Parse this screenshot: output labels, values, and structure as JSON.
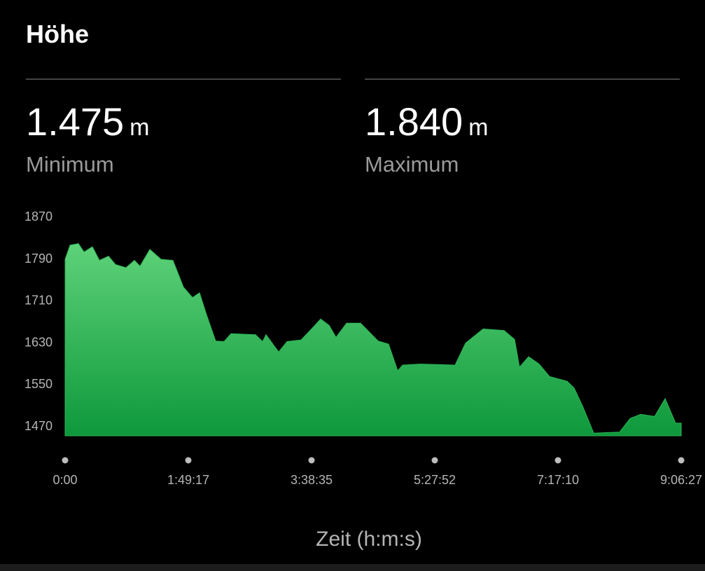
{
  "header": {
    "title": "Höhe"
  },
  "stats": [
    {
      "value": "1.475",
      "unit": "m",
      "label": "Minimum"
    },
    {
      "value": "1.840",
      "unit": "m",
      "label": "Maximum"
    }
  ],
  "chart_data": {
    "type": "area",
    "xlabel": "Zeit (h:m:s)",
    "color": "#2cb555",
    "x": [
      0,
      261,
      708,
      1006,
      1453,
      1826,
      2310,
      2683,
      3242,
      3689,
      3987,
      4509,
      5105,
      5738,
      6297,
      6781,
      7154,
      7527,
      8011,
      8458,
      8831,
      10135,
      10508,
      10694,
      11365,
      11812,
      12557,
      13116,
      13600,
      14047,
      14420,
      14979,
      15724,
      16656,
      17215,
      17699,
      17960,
      18891,
      20754,
      21313,
      22244,
      23362,
      23921,
      24182,
      24666,
      25225,
      25784,
      26716,
      27088,
      27535,
      28131,
      29510,
      30069,
      30628,
      31373,
      31932,
      32491,
      32787
    ],
    "values": [
      1807,
      1834,
      1837,
      1821,
      1831,
      1805,
      1813,
      1797,
      1791,
      1805,
      1794,
      1826,
      1807,
      1805,
      1754,
      1734,
      1743,
      1701,
      1651,
      1650,
      1665,
      1663,
      1650,
      1663,
      1630,
      1650,
      1653,
      1674,
      1693,
      1681,
      1658,
      1685,
      1685,
      1651,
      1645,
      1594,
      1605,
      1607,
      1605,
      1647,
      1674,
      1671,
      1654,
      1601,
      1621,
      1607,
      1583,
      1574,
      1561,
      1527,
      1475,
      1477,
      1503,
      1511,
      1507,
      1541,
      1494,
      1494
    ],
    "xlim": [
      0,
      32787
    ],
    "ylim": [
      1470,
      1870
    ],
    "xticks": [
      {
        "value": 0,
        "label": "0:00"
      },
      {
        "value": 6557,
        "label": "1:49:17"
      },
      {
        "value": 13115,
        "label": "3:38:35"
      },
      {
        "value": 19672,
        "label": "5:27:52"
      },
      {
        "value": 26230,
        "label": "7:17:10"
      },
      {
        "value": 32787,
        "label": "9:06:27"
      }
    ],
    "yticks": [
      1470,
      1550,
      1630,
      1710,
      1790,
      1870
    ]
  }
}
